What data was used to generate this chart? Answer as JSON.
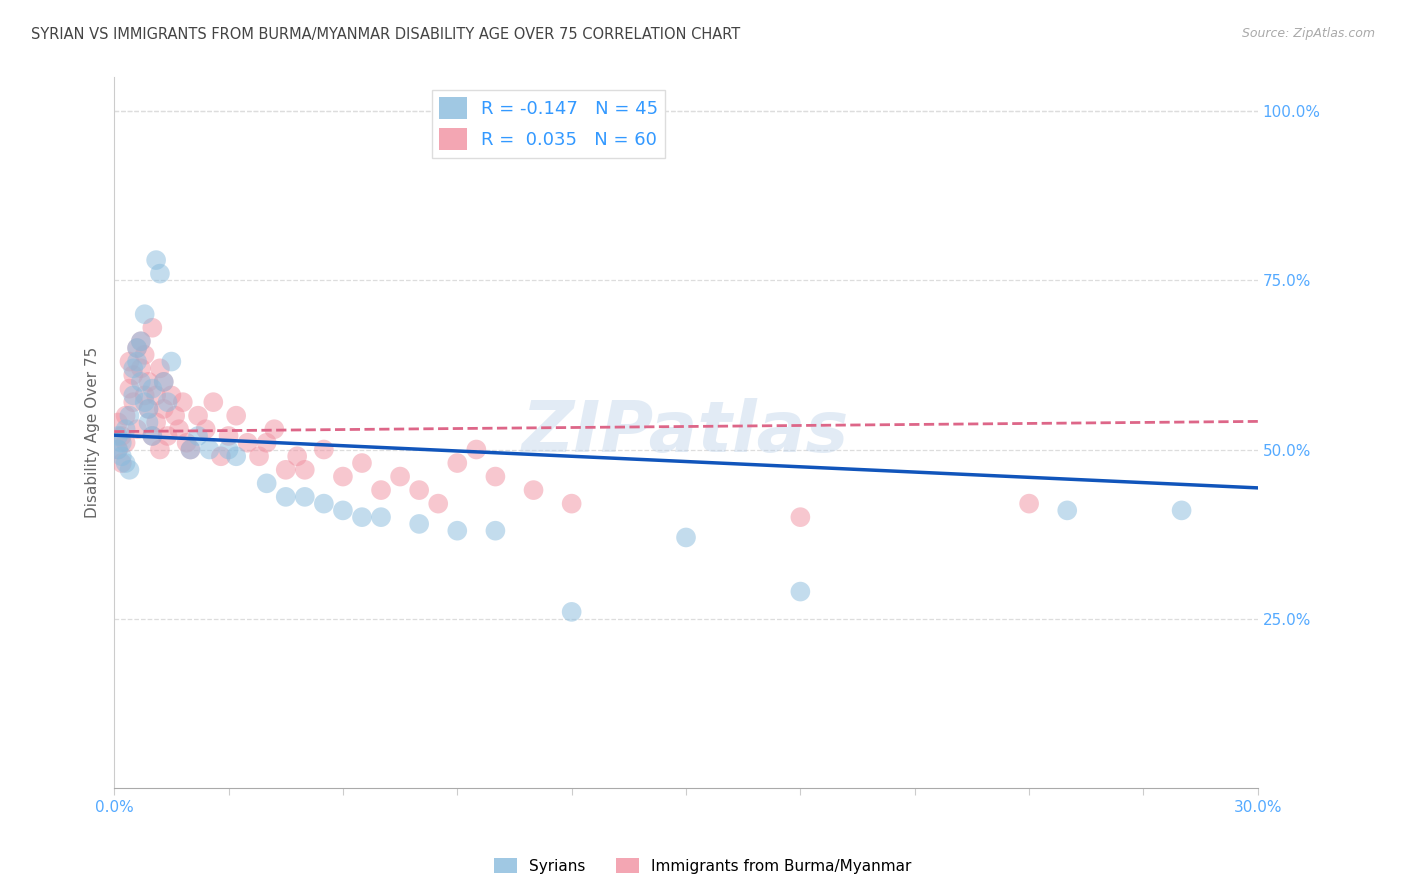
{
  "title": "SYRIAN VS IMMIGRANTS FROM BURMA/MYANMAR DISABILITY AGE OVER 75 CORRELATION CHART",
  "source": "Source: ZipAtlas.com",
  "ylabel": "Disability Age Over 75",
  "ylabel_right_labels": [
    "100.0%",
    "75.0%",
    "50.0%",
    "25.0%"
  ],
  "ylabel_right_values": [
    1.0,
    0.75,
    0.5,
    0.25
  ],
  "xmin": 0.0,
  "xmax": 0.3,
  "ymin": 0.0,
  "ymax": 1.05,
  "watermark": "ZIPatlas",
  "syrians_color": "#88BBDD",
  "burma_color": "#F090A0",
  "syrians_R": -0.147,
  "syrians_N": 45,
  "burma_R": 0.035,
  "burma_N": 60,
  "trend_blue": "#1155BB",
  "trend_pink": "#DD6688",
  "grid_color": "#dddddd",
  "background_color": "#ffffff",
  "axis_label_color": "#55AAFF",
  "syrians_x": [
    0.001,
    0.001,
    0.002,
    0.002,
    0.003,
    0.003,
    0.004,
    0.004,
    0.005,
    0.005,
    0.006,
    0.006,
    0.007,
    0.007,
    0.008,
    0.008,
    0.009,
    0.009,
    0.01,
    0.01,
    0.011,
    0.012,
    0.013,
    0.014,
    0.015,
    0.02,
    0.022,
    0.025,
    0.03,
    0.032,
    0.04,
    0.045,
    0.05,
    0.055,
    0.06,
    0.065,
    0.07,
    0.08,
    0.09,
    0.1,
    0.12,
    0.15,
    0.18,
    0.25,
    0.28
  ],
  "syrians_y": [
    0.5,
    0.52,
    0.49,
    0.51,
    0.53,
    0.48,
    0.55,
    0.47,
    0.62,
    0.58,
    0.65,
    0.63,
    0.6,
    0.66,
    0.57,
    0.7,
    0.54,
    0.56,
    0.52,
    0.59,
    0.78,
    0.76,
    0.6,
    0.57,
    0.63,
    0.5,
    0.52,
    0.5,
    0.5,
    0.49,
    0.45,
    0.43,
    0.43,
    0.42,
    0.41,
    0.4,
    0.4,
    0.39,
    0.38,
    0.38,
    0.26,
    0.37,
    0.29,
    0.41,
    0.41
  ],
  "burma_x": [
    0.001,
    0.001,
    0.002,
    0.002,
    0.003,
    0.003,
    0.004,
    0.004,
    0.005,
    0.005,
    0.006,
    0.006,
    0.007,
    0.007,
    0.008,
    0.008,
    0.009,
    0.009,
    0.01,
    0.01,
    0.011,
    0.011,
    0.012,
    0.012,
    0.013,
    0.013,
    0.014,
    0.015,
    0.016,
    0.017,
    0.018,
    0.019,
    0.02,
    0.022,
    0.024,
    0.026,
    0.028,
    0.03,
    0.032,
    0.035,
    0.038,
    0.04,
    0.042,
    0.045,
    0.048,
    0.05,
    0.055,
    0.06,
    0.065,
    0.07,
    0.075,
    0.08,
    0.085,
    0.09,
    0.095,
    0.1,
    0.11,
    0.12,
    0.18,
    0.24
  ],
  "burma_y": [
    0.5,
    0.54,
    0.48,
    0.52,
    0.55,
    0.51,
    0.63,
    0.59,
    0.61,
    0.57,
    0.65,
    0.53,
    0.66,
    0.62,
    0.58,
    0.64,
    0.56,
    0.6,
    0.52,
    0.68,
    0.54,
    0.58,
    0.62,
    0.5,
    0.56,
    0.6,
    0.52,
    0.58,
    0.55,
    0.53,
    0.57,
    0.51,
    0.5,
    0.55,
    0.53,
    0.57,
    0.49,
    0.52,
    0.55,
    0.51,
    0.49,
    0.51,
    0.53,
    0.47,
    0.49,
    0.47,
    0.5,
    0.46,
    0.48,
    0.44,
    0.46,
    0.44,
    0.42,
    0.48,
    0.5,
    0.46,
    0.44,
    0.42,
    0.4,
    0.42
  ]
}
